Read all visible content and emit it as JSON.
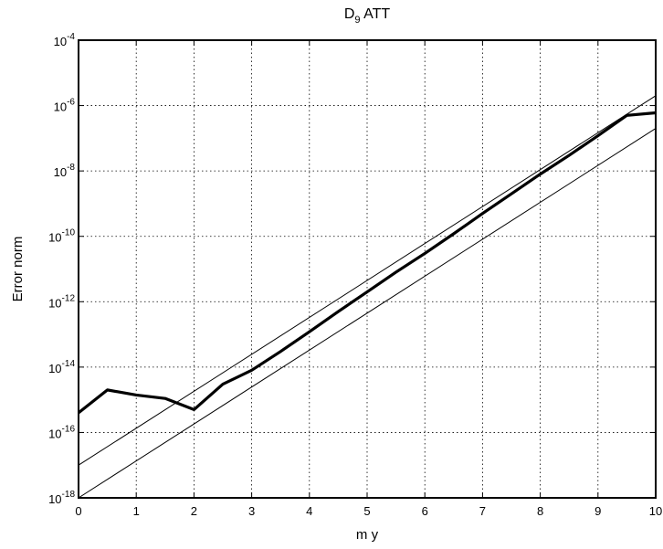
{
  "chart_data": {
    "type": "line",
    "title": "D",
    "title_subscript": "9",
    "title_suffix": " ATT",
    "xlabel": "m y",
    "ylabel": "Error norm",
    "xlim": [
      0,
      10
    ],
    "ylim": [
      1e-18,
      0.0001
    ],
    "yscale": "log",
    "grid": true,
    "legend": "none",
    "x_ticks": [
      0,
      1,
      2,
      3,
      4,
      5,
      6,
      7,
      8,
      9,
      10
    ],
    "y_tick_base": "10",
    "y_tick_exponents": [
      "-18",
      "-16",
      "-14",
      "-12",
      "-10",
      "-8",
      "-6",
      "-4"
    ],
    "series": [
      {
        "style": "thick",
        "x": [
          0,
          0.5,
          1,
          1.5,
          2,
          2.5,
          3,
          3.5,
          4,
          4.5,
          5,
          5.5,
          6,
          6.5,
          7,
          7.5,
          8,
          8.5,
          9,
          9.5,
          10
        ],
        "y": [
          4e-16,
          2e-15,
          1.4e-15,
          1.1e-15,
          5e-16,
          3e-15,
          8e-15,
          3e-14,
          1.2e-13,
          5e-13,
          2e-12,
          8e-12,
          3e-11,
          1.2e-10,
          5e-10,
          2e-09,
          8e-09,
          3e-08,
          1.2e-07,
          5e-07,
          6e-07
        ]
      },
      {
        "style": "thin",
        "x": [
          0,
          10
        ],
        "y": [
          1e-17,
          2e-06
        ]
      },
      {
        "style": "thin",
        "x": [
          0,
          10
        ],
        "y": [
          1e-18,
          2e-07
        ]
      }
    ]
  }
}
